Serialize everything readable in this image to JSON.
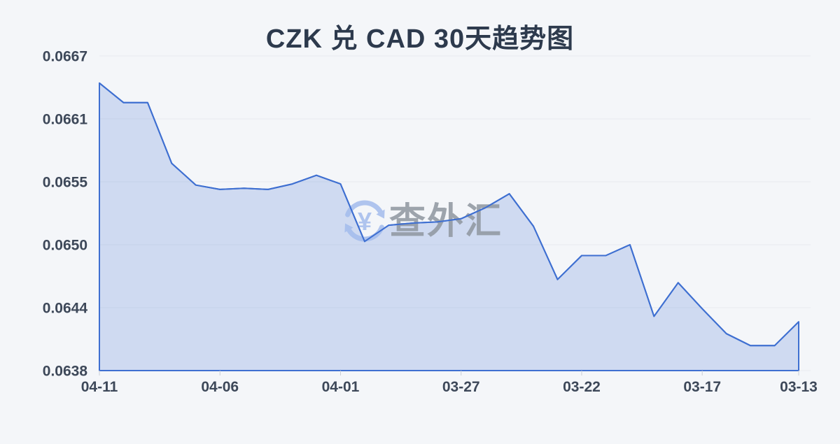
{
  "title": "CZK 兑 CAD 30天趋势图",
  "watermark": {
    "text": "查外汇",
    "icon": "currency-exchange-yen-icon",
    "icon_symbol": "¥",
    "icon_color": "#a3bced",
    "text_color": "#8f969f"
  },
  "colors": {
    "background": "#f4f6f9",
    "line": "#3e6fd1",
    "area_fill": "rgba(62,111,209,0.20)",
    "grid": "#e7eaef",
    "tick": "#c9ced6",
    "axis_label": "#3d4859",
    "title": "#2d3a4d"
  },
  "chart_data": {
    "type": "area",
    "title": "CZK 兑 CAD 30天趋势图",
    "x": [
      "04-11",
      "04-10",
      "04-09",
      "04-08",
      "04-07",
      "04-06",
      "04-05",
      "04-04",
      "04-03",
      "04-02",
      "04-01",
      "03-31",
      "03-30",
      "03-29",
      "03-28",
      "03-27",
      "03-26",
      "03-25",
      "03-24",
      "03-23",
      "03-22",
      "03-21",
      "03-20",
      "03-19",
      "03-18",
      "03-17",
      "03-16",
      "03-15",
      "03-14",
      "03-13"
    ],
    "values": [
      0.06645,
      0.06627,
      0.06627,
      0.06571,
      0.06551,
      0.06547,
      0.06548,
      0.06547,
      0.06552,
      0.0656,
      0.06552,
      0.06499,
      0.06514,
      0.06516,
      0.06517,
      0.0652,
      0.0653,
      0.06543,
      0.06513,
      0.06464,
      0.06486,
      0.06486,
      0.06496,
      0.0643,
      0.06461,
      0.06437,
      0.06414,
      0.06403,
      0.06403,
      0.06425
    ],
    "x_tick_indices": [
      0,
      5,
      10,
      15,
      20,
      25,
      29
    ],
    "x_tick_labels": [
      "04-11",
      "04-06",
      "04-01",
      "03-27",
      "03-22",
      "03-17",
      "03-13"
    ],
    "y_tick_labels": [
      "0.0667",
      "0.0661",
      "0.0655",
      "0.0650",
      "0.0644",
      "0.0638"
    ],
    "ylim": [
      0.0638,
      0.0667
    ],
    "x_axis_reversed_dates": true,
    "grid": true,
    "legend": false
  }
}
